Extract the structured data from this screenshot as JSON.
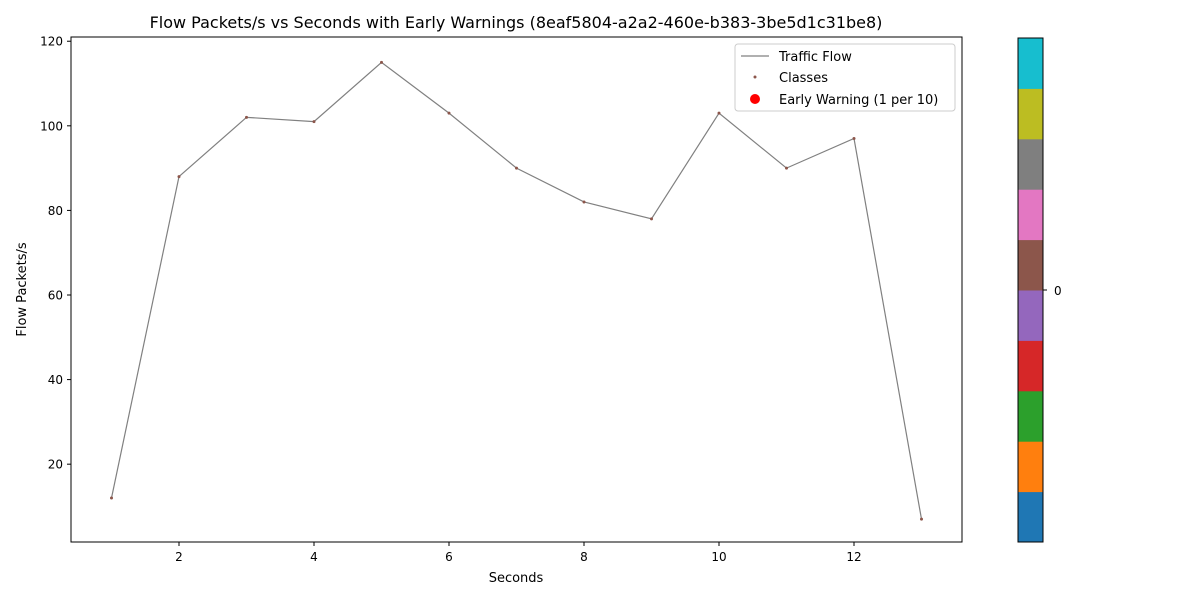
{
  "chart_data": {
    "type": "line",
    "title": "Flow Packets/s vs Seconds with Early Warnings (8eaf5804-a2a2-460e-b383-3be5d1c31be8)",
    "xlabel": "Seconds",
    "ylabel": "Flow Packets/s",
    "xlim": [
      0.4,
      13.6
    ],
    "ylim": [
      1.6,
      121.0
    ],
    "xticks": [
      2,
      4,
      6,
      8,
      10,
      12
    ],
    "yticks": [
      20,
      40,
      60,
      80,
      100,
      120
    ],
    "grid": false,
    "legend_position": "top-right",
    "series": [
      {
        "name": "Traffic Flow",
        "style": "line",
        "color": "#808080",
        "x": [
          1,
          2,
          3,
          4,
          5,
          6,
          7,
          8,
          9,
          10,
          11,
          12,
          13
        ],
        "y": [
          12,
          88,
          102,
          101,
          115,
          103,
          90,
          82,
          78,
          103,
          90,
          97,
          7
        ]
      },
      {
        "name": "Classes",
        "style": "scatter",
        "color": "#8c564b",
        "x": [
          1,
          2,
          3,
          4,
          5,
          6,
          7,
          8,
          9,
          10,
          11,
          12,
          13
        ],
        "y": [
          12,
          88,
          102,
          101,
          115,
          103,
          90,
          82,
          78,
          103,
          90,
          97,
          7
        ]
      },
      {
        "name": "Early Warning (1 per 10)",
        "style": "scatter",
        "color": "#ff0000",
        "x": [],
        "y": []
      }
    ],
    "colorbar": {
      "ticks": [
        "0"
      ],
      "colors": [
        "#1f77b4",
        "#ff7f0e",
        "#2ca02c",
        "#d62728",
        "#9467bd",
        "#8c564b",
        "#e377c2",
        "#7f7f7f",
        "#bcbd22",
        "#17becf"
      ]
    }
  }
}
